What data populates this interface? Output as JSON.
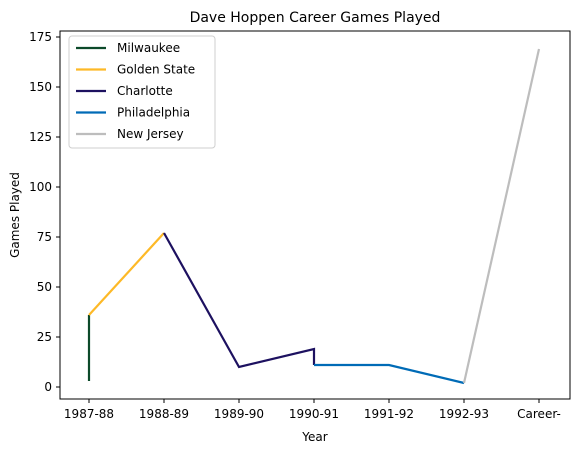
{
  "chart_data": {
    "type": "line",
    "title": "Dave Hoppen Career Games Played",
    "xlabel": "Year",
    "ylabel": "Games Played",
    "categories": [
      "1987-88",
      "1988-89",
      "1989-90",
      "1990-91",
      "1991-92",
      "1992-93",
      "Career-"
    ],
    "ylim": [
      -6,
      178
    ],
    "yticks": [
      0,
      25,
      50,
      75,
      100,
      125,
      150,
      175
    ],
    "grid": false,
    "legend_position": "top-left",
    "series": [
      {
        "name": "Milwaukee",
        "color": "#0c4a2a",
        "points": [
          {
            "x": "1987-88",
            "y": 3
          },
          {
            "x": "1987-88",
            "y": 36
          }
        ]
      },
      {
        "name": "Golden State",
        "color": "#fdb927",
        "points": [
          {
            "x": "1987-88",
            "y": 36
          },
          {
            "x": "1988-89",
            "y": 77
          }
        ]
      },
      {
        "name": "Charlotte",
        "color": "#1d1160",
        "points": [
          {
            "x": "1988-89",
            "y": 77
          },
          {
            "x": "1989-90",
            "y": 10
          },
          {
            "x": "1990-91",
            "y": 19
          },
          {
            "x": "1990-91",
            "y": 11
          }
        ]
      },
      {
        "name": "Philadelphia",
        "color": "#006bb6",
        "points": [
          {
            "x": "1990-91",
            "y": 11
          },
          {
            "x": "1991-92",
            "y": 11
          },
          {
            "x": "1992-93",
            "y": 2
          }
        ]
      },
      {
        "name": "New Jersey",
        "color": "#bdbdbd",
        "points": [
          {
            "x": "1992-93",
            "y": 2
          },
          {
            "x": "Career-",
            "y": 169
          }
        ]
      }
    ]
  }
}
